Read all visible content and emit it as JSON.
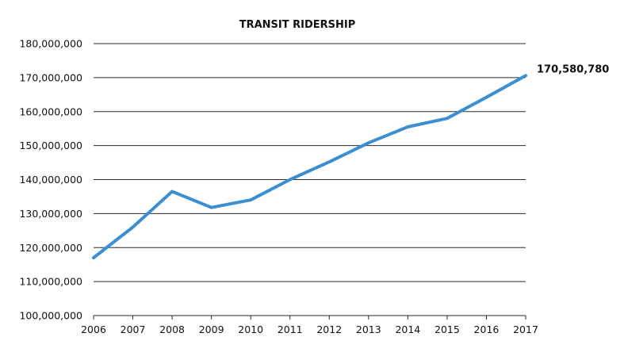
{
  "chart_data": {
    "type": "line",
    "title": "TRANSIT RIDERSHIP",
    "xlabel": "",
    "ylabel": "",
    "categories": [
      "2006",
      "2007",
      "2008",
      "2009",
      "2010",
      "2011",
      "2012",
      "2013",
      "2014",
      "2015",
      "2016",
      "2017"
    ],
    "series": [
      {
        "values": [
          117000000,
          126000000,
          136500000,
          131800000,
          134000000,
          140000000,
          145200000,
          150800000,
          155500000,
          158000000,
          164200000,
          170580780
        ],
        "color": "#3b8fd0"
      }
    ],
    "ylim": [
      100000000,
      180000000
    ],
    "yticks": [
      "100,000,000",
      "110,000,000",
      "120,000,000",
      "130,000,000",
      "140,000,000",
      "150,000,000",
      "160,000,000",
      "170,000,000",
      "180,000,000"
    ],
    "ytick_values": [
      100000000,
      110000000,
      120000000,
      130000000,
      140000000,
      150000000,
      160000000,
      170000000,
      180000000
    ],
    "end_label": "170,580,780",
    "grid": true,
    "legend": "none"
  }
}
